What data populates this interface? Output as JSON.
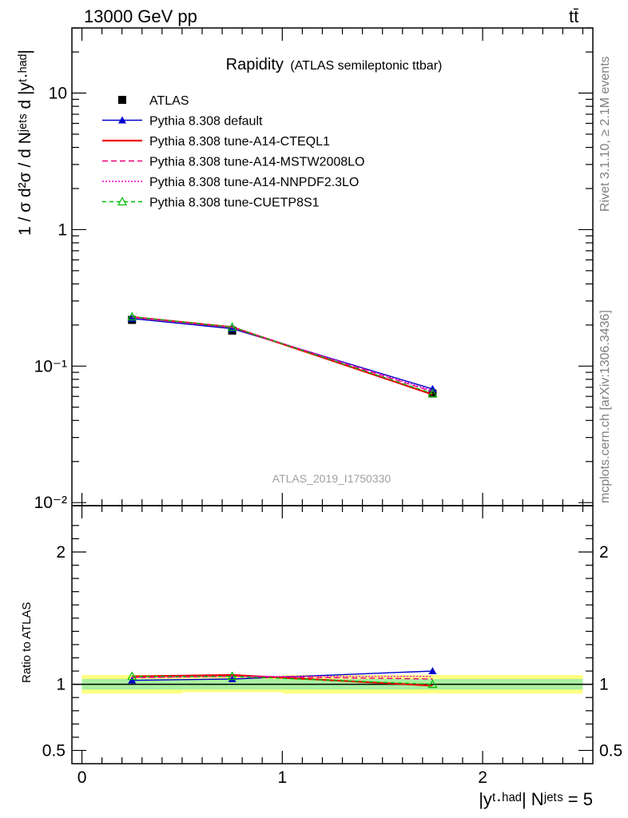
{
  "header": {
    "energy": "13000 GeV pp",
    "process": "tt̄"
  },
  "title": {
    "main": "Rapidity",
    "sub": "(ATLAS semileptonic ttbar)"
  },
  "side_labels": {
    "rivet": "Rivet 3.1.10, ≥ 2.1M events",
    "mcplots": "mcplots.cern.ch [arXiv:1306.3436]"
  },
  "watermark": "ATLAS_2019_I1750330",
  "axes": {
    "main_ylabel": "1 / σ d²σ / d Nʲᵉᵗˢ d |yᵗ·ʰᵃᵈ|",
    "ratio_ylabel": "Ratio to ATLAS",
    "xlabel": "|yᵗ·ʰᵃᵈ| Nʲᵉᵗˢ = 5",
    "main_y_ticks": [
      {
        "value": 10,
        "label": "10"
      },
      {
        "value": 1,
        "label": "1"
      },
      {
        "value": 0.1,
        "label": "10⁻¹"
      },
      {
        "value": 0.01,
        "label": "10⁻²"
      }
    ],
    "ratio_y_ticks": [
      {
        "value": 2,
        "label": "2"
      },
      {
        "value": 1,
        "label": "1"
      },
      {
        "value": 0.5,
        "label": "0.5"
      }
    ],
    "x_ticks": [
      {
        "value": 0,
        "label": "0"
      },
      {
        "value": 1,
        "label": "1"
      },
      {
        "value": 2,
        "label": "2"
      }
    ]
  },
  "chart_data": {
    "type": "line",
    "x_scale": "linear",
    "main_y_scale": "log",
    "xlim": [
      -0.05,
      2.55
    ],
    "main_ylim": [
      0.0095,
      30
    ],
    "ratio_ylim": [
      0.4,
      2.35
    ],
    "bins": [
      [
        0,
        0.5
      ],
      [
        0.5,
        1.0
      ],
      [
        1.0,
        2.5
      ]
    ],
    "x": [
      0.25,
      0.75,
      1.75
    ],
    "data": {
      "name": "ATLAS",
      "values": [
        0.218,
        0.182,
        0.063
      ],
      "band_inner": [
        0.04,
        0.04,
        0.04
      ],
      "band_outer": [
        0.07,
        0.06,
        0.07
      ]
    },
    "series": [
      {
        "name": "Pythia 8.308 default",
        "color": "#0000cc",
        "dash": "",
        "marker": "triangle-filled",
        "values": [
          0.223,
          0.188,
          0.068
        ],
        "ratio": [
          1.03,
          1.04,
          1.1
        ]
      },
      {
        "name": "Pythia 8.308 tune-A14-CTEQL1",
        "color": "#ee0000",
        "dash": "",
        "marker": "none",
        "values": [
          0.229,
          0.193,
          0.062
        ],
        "ratio": [
          1.06,
          1.07,
          0.99
        ]
      },
      {
        "name": "Pythia 8.308 tune-A14-MSTW2008LO",
        "color": "#ee0077",
        "dash": "7,4",
        "marker": "none",
        "values": [
          0.228,
          0.192,
          0.065
        ],
        "ratio": [
          1.05,
          1.06,
          1.04
        ]
      },
      {
        "name": "Pythia 8.308 tune-A14-NNPDF2.3LO",
        "color": "#ee00cc",
        "dash": "2,2",
        "marker": "none",
        "values": [
          0.228,
          0.192,
          0.066
        ],
        "ratio": [
          1.05,
          1.06,
          1.06
        ]
      },
      {
        "name": "Pythia 8.308 tune-CUETP8S1",
        "color": "#00bb00",
        "dash": "5,4",
        "marker": "triangle-open",
        "values": [
          0.23,
          0.193,
          0.063
        ],
        "ratio": [
          1.06,
          1.06,
          1.0
        ]
      }
    ]
  }
}
